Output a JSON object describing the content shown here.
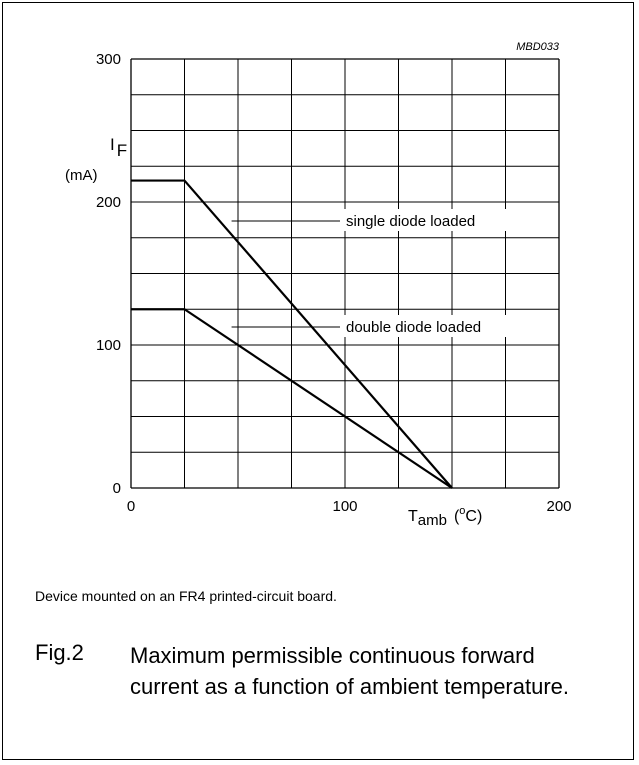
{
  "chart_data": {
    "type": "line",
    "code": "MBD033",
    "ylabel_main": "I",
    "ylabel_sub": "F",
    "yunit": "(mA)",
    "xlabel_main": "T",
    "xlabel_sub": "amb",
    "xunit_open": "(",
    "xunit_sup": "o",
    "xunit_close": "C)",
    "xlim": [
      0,
      200
    ],
    "ylim": [
      0,
      300
    ],
    "xticks": [
      "0",
      "100",
      "200"
    ],
    "yticks": [
      "0",
      "100",
      "200",
      "300"
    ],
    "grid": true,
    "series": [
      {
        "name": "single diode loaded",
        "x": [
          0,
          25,
          150
        ],
        "y": [
          215,
          215,
          0
        ]
      },
      {
        "name": "double diode loaded",
        "x": [
          0,
          25,
          150
        ],
        "y": [
          125,
          125,
          0
        ]
      }
    ]
  },
  "note": "Device mounted on an FR4 printed-circuit board.",
  "figure": {
    "number": "Fig.2",
    "caption": "Maximum permissible continuous forward current as a function of ambient temperature."
  }
}
